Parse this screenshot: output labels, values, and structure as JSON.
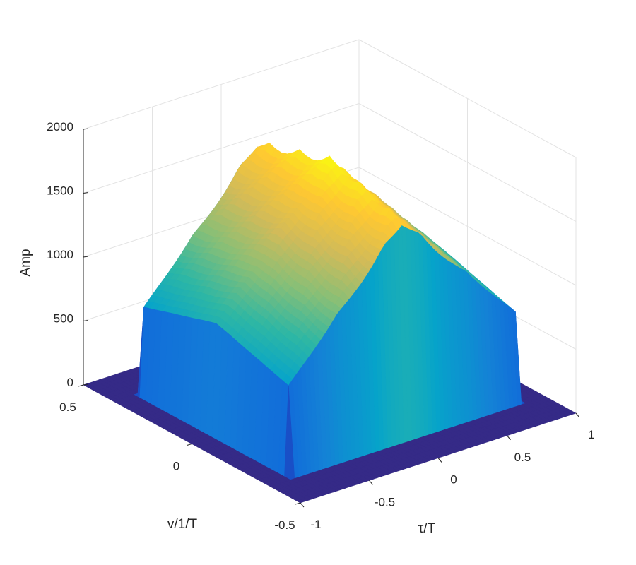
{
  "chart_data": {
    "type": "surface",
    "title": "",
    "xlabel": "τ/T",
    "ylabel": "v/1/T",
    "zlabel": "Amp",
    "xlim": [
      -1,
      1
    ],
    "ylim": [
      -0.5,
      0.5
    ],
    "zlim": [
      0,
      2000
    ],
    "xticks": [
      {
        "v": -1,
        "label": "-1"
      },
      {
        "v": -0.5,
        "label": "-0.5"
      },
      {
        "v": 0,
        "label": "0"
      },
      {
        "v": 0.5,
        "label": "0.5"
      },
      {
        "v": 1,
        "label": "1"
      }
    ],
    "yticks": [
      {
        "v": -0.5,
        "label": "-0.5"
      },
      {
        "v": 0,
        "label": "0"
      },
      {
        "v": 0.5,
        "label": "0.5"
      }
    ],
    "zticks": [
      {
        "v": 0,
        "label": "0"
      },
      {
        "v": 500,
        "label": "500"
      },
      {
        "v": 1000,
        "label": "1000"
      },
      {
        "v": 1500,
        "label": "1500"
      },
      {
        "v": 2000,
        "label": "2000"
      }
    ],
    "grid": true,
    "colormap": "parula",
    "surface": {
      "support_x": [
        -0.85,
        0.85
      ],
      "support_y": [
        -0.35,
        0.35
      ],
      "peak": {
        "x": 0,
        "y": 0,
        "z": 1900
      },
      "edge_z_at_x_limits": 850,
      "edge_z_drop_at_y_limits": 190
    }
  }
}
